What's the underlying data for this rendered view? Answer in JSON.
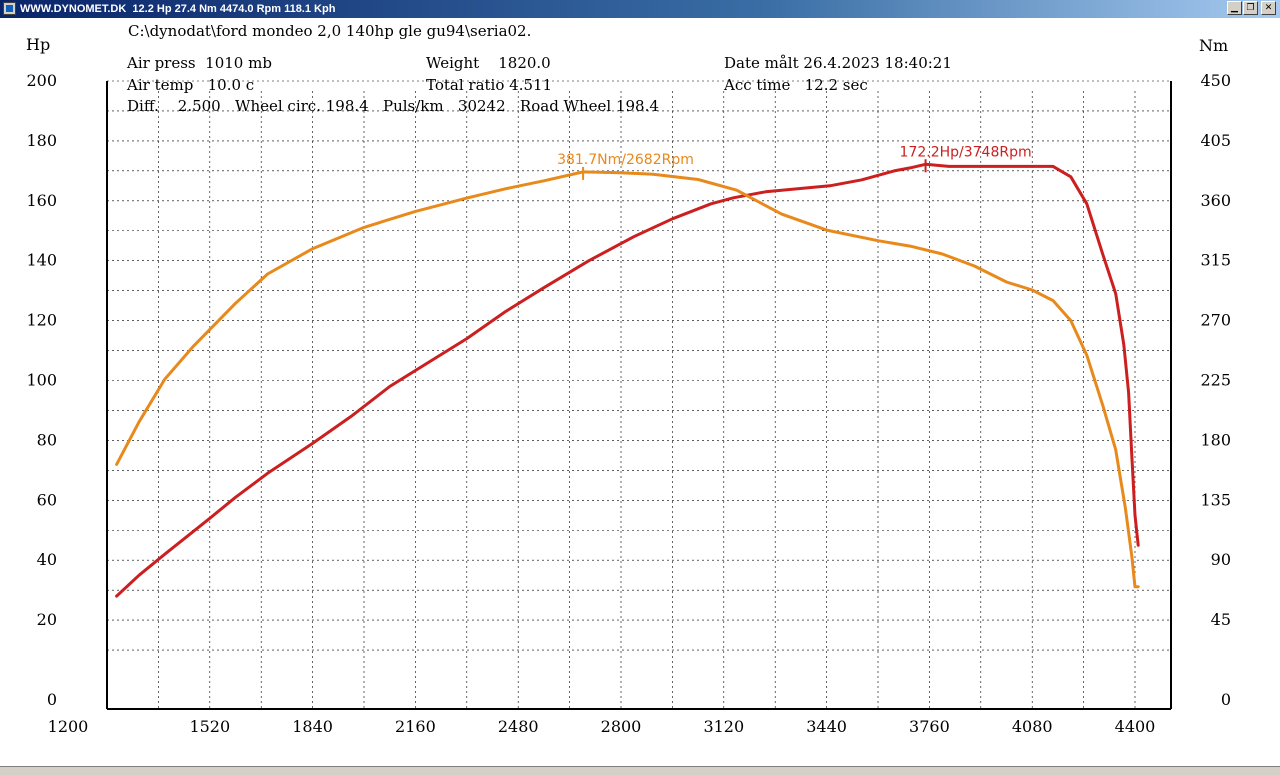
{
  "window": {
    "title": "WWW.DYNOMET.DK  12.2 Hp 27.4 Nm 4474.0 Rpm 118.1 Kph",
    "minimize_icon": "minimize-icon",
    "restore_icon": "restore-icon",
    "close_icon": "close-icon"
  },
  "info": {
    "file_path": "C:\\dynodat\\ford mondeo 2,0 140hp gle gu94\\seria02.",
    "air_press": "Air press  1010 mb",
    "air_temp": "Air temp   10.0 c",
    "diff_line": "Diff.    2.500   Wheel circ. 198.4   Puls/km   30242   Road Wheel 198.4",
    "weight": "Weight    1820.0",
    "total_ratio": "Total ratio 4.511",
    "date": "Date målt 26.4.2023 18:40:21",
    "acc_time": "Acc time   12.2 sec"
  },
  "colors": {
    "power": "#cc1f1f",
    "torque": "#e8891c",
    "grid": "#000000",
    "background": "#ffffff"
  },
  "chart_data": {
    "type": "line",
    "title": "",
    "xlabel": "",
    "ylabel_left": "Hp",
    "ylabel_right": "Nm",
    "xlim": [
      1200,
      4400
    ],
    "ylim_left": [
      0,
      200
    ],
    "ylim_right": [
      0,
      450
    ],
    "grid": true,
    "x_ticks": [
      "1200",
      "1520",
      "1840",
      "2160",
      "2480",
      "2800",
      "3120",
      "3440",
      "3760",
      "4080",
      "4400"
    ],
    "y_ticks_left": [
      "0",
      "20",
      "40",
      "60",
      "80",
      "100",
      "120",
      "140",
      "160",
      "180",
      "200"
    ],
    "y_ticks_right": [
      "0",
      "45",
      "90",
      "135",
      "180",
      "225",
      "270",
      "315",
      "360",
      "405",
      "450"
    ],
    "annotations": [
      {
        "text": "381.7Nm/2682Rpm",
        "series": "torque",
        "x": 2682,
        "y": 381.7
      },
      {
        "text": "172.2Hp/3748Rpm",
        "series": "power",
        "x": 3748,
        "y": 172.2
      }
    ],
    "series": [
      {
        "id": "power",
        "axis": "left",
        "x": [
          1230,
          1300,
          1380,
          1520,
          1600,
          1700,
          1840,
          1960,
          2080,
          2200,
          2320,
          2440,
          2560,
          2700,
          2840,
          2960,
          3080,
          3150,
          3250,
          3350,
          3450,
          3550,
          3650,
          3700,
          3748,
          3820,
          3900,
          4000,
          4100,
          4145,
          4200,
          4250,
          4300,
          4340,
          4365,
          4380,
          4390,
          4400,
          4410
        ],
        "values": [
          28,
          35,
          42,
          54,
          61,
          69,
          79,
          88,
          98,
          106,
          114,
          123,
          131,
          140,
          148,
          154,
          159,
          161,
          163,
          164,
          165,
          167,
          170,
          171,
          172.2,
          171.5,
          171.5,
          171.5,
          171.5,
          171.5,
          168,
          159,
          142,
          129,
          112,
          96,
          75,
          55,
          45
        ]
      },
      {
        "id": "torque",
        "axis": "right",
        "x": [
          1230,
          1300,
          1380,
          1470,
          1600,
          1700,
          1840,
          2000,
          2160,
          2320,
          2440,
          2560,
          2682,
          2800,
          2900,
          3040,
          3160,
          3300,
          3440,
          3600,
          3700,
          3800,
          3900,
          4000,
          4080,
          4145,
          4200,
          4250,
          4300,
          4340,
          4370,
          4390,
          4400,
          4410
        ],
        "values": [
          162,
          194,
          226,
          251,
          283,
          305,
          324,
          340,
          352,
          362,
          369,
          375,
          381.7,
          381,
          380,
          376,
          368,
          350,
          338,
          330,
          326,
          320,
          311,
          299,
          293,
          285,
          270,
          244,
          206,
          173,
          129,
          93,
          70,
          70
        ]
      }
    ]
  }
}
